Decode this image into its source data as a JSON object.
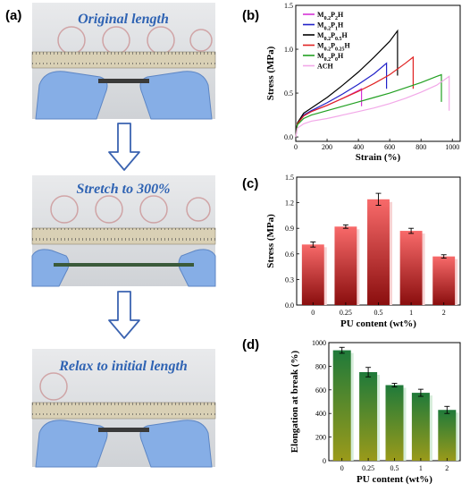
{
  "labels": {
    "a": "(a)",
    "b": "(b)",
    "c": "(c)",
    "d": "(d)"
  },
  "photos": [
    {
      "caption": "Original length",
      "state": "original"
    },
    {
      "caption": "Stretch to 300%",
      "state": "stretched"
    },
    {
      "caption": "Relax to initial length",
      "state": "relaxed"
    }
  ],
  "colors": {
    "caption": "#2f63b3",
    "arrow": "#3b63b0",
    "glove": "#86aee6",
    "ruler": "#d9d0b5"
  },
  "chart_data": [
    {
      "id": "b",
      "type": "line",
      "xlabel": "Strain (%)",
      "ylabel": "Stress (MPa)",
      "xlim": [
        0,
        1050
      ],
      "ylim": [
        -0.05,
        1.5
      ],
      "xticks": [
        0,
        200,
        400,
        600,
        800,
        1000
      ],
      "yticks": [
        0.0,
        0.5,
        1.0,
        1.5
      ],
      "legend_position": "top-left",
      "series": [
        {
          "name": "M0.2P2H",
          "color": "#d633d6",
          "x": [
            0,
            10,
            50,
            100,
            200,
            300,
            400,
            420,
            420
          ],
          "y": [
            0,
            0.15,
            0.24,
            0.29,
            0.36,
            0.44,
            0.53,
            0.55,
            0.35
          ]
        },
        {
          "name": "M0.2P1H",
          "color": "#2121c8",
          "x": [
            0,
            10,
            50,
            100,
            200,
            300,
            400,
            500,
            580,
            580
          ],
          "y": [
            0,
            0.15,
            0.25,
            0.3,
            0.39,
            0.49,
            0.6,
            0.72,
            0.84,
            0.55
          ]
        },
        {
          "name": "M0.2P0.5H",
          "color": "#000000",
          "x": [
            0,
            10,
            50,
            100,
            200,
            300,
            400,
            500,
            600,
            650,
            650
          ],
          "y": [
            0,
            0.16,
            0.27,
            0.33,
            0.45,
            0.59,
            0.74,
            0.91,
            1.09,
            1.21,
            0.7
          ]
        },
        {
          "name": "M0.2P0.25H",
          "color": "#e02222",
          "x": [
            0,
            10,
            50,
            100,
            200,
            300,
            400,
            500,
            600,
            700,
            750,
            750
          ],
          "y": [
            0,
            0.15,
            0.24,
            0.29,
            0.36,
            0.44,
            0.52,
            0.61,
            0.71,
            0.84,
            0.91,
            0.55
          ]
        },
        {
          "name": "M0.2P0H",
          "color": "#22a022",
          "x": [
            0,
            10,
            50,
            100,
            200,
            300,
            400,
            500,
            600,
            700,
            800,
            900,
            930,
            930
          ],
          "y": [
            0,
            0.14,
            0.21,
            0.25,
            0.3,
            0.35,
            0.4,
            0.45,
            0.5,
            0.56,
            0.62,
            0.69,
            0.71,
            0.4
          ]
        },
        {
          "name": "ACH",
          "color": "#f2a8e8",
          "x": [
            0,
            10,
            50,
            100,
            200,
            300,
            400,
            500,
            600,
            700,
            800,
            900,
            980,
            980
          ],
          "y": [
            0,
            0.1,
            0.15,
            0.18,
            0.21,
            0.25,
            0.29,
            0.33,
            0.38,
            0.44,
            0.51,
            0.59,
            0.69,
            0.3
          ]
        }
      ]
    },
    {
      "id": "c",
      "type": "bar",
      "xlabel": "PU content (wt%)",
      "ylabel": "Stress (MPa)",
      "ylim": [
        0,
        1.5
      ],
      "yticks": [
        0.0,
        0.3,
        0.6,
        0.9,
        1.2,
        1.5
      ],
      "categories": [
        "0",
        "0.25",
        "0.5",
        "1",
        "2"
      ],
      "values": [
        0.71,
        0.92,
        1.24,
        0.87,
        0.57
      ],
      "errors": [
        0.03,
        0.02,
        0.07,
        0.03,
        0.02
      ],
      "bar_color_top": "#f86a6a",
      "bar_color_bottom": "#8a0e0e"
    },
    {
      "id": "d",
      "type": "bar",
      "xlabel": "PU content (wt%)",
      "ylabel": "Elongation at break (%)",
      "ylim": [
        0,
        1000
      ],
      "yticks": [
        0,
        200,
        400,
        600,
        800,
        1000
      ],
      "categories": [
        "0",
        "0.25",
        "0.5",
        "1",
        "2"
      ],
      "values": [
        935,
        750,
        640,
        575,
        430
      ],
      "errors": [
        25,
        40,
        15,
        30,
        30
      ],
      "bar_color_top": "#1f7a3a",
      "bar_color_bottom": "#9a9a1a"
    }
  ]
}
